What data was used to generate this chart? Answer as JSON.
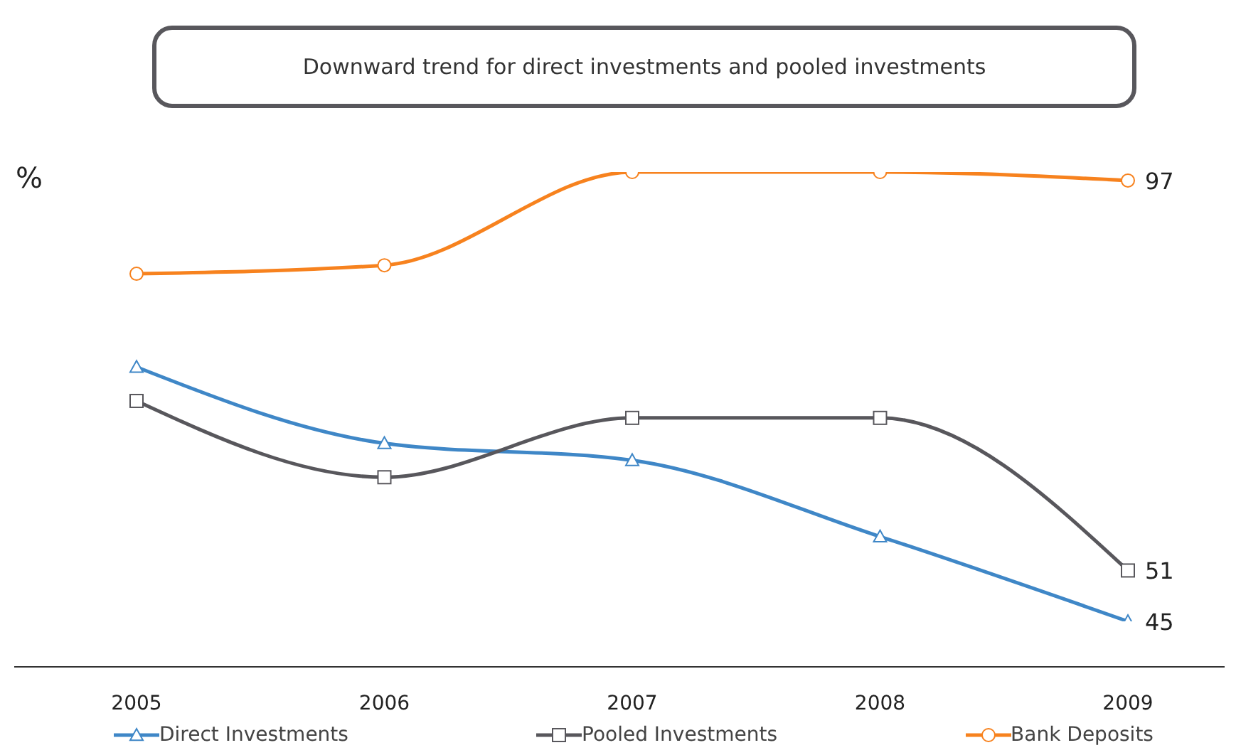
{
  "chart_data": {
    "type": "line",
    "title": "Downward trend for direct investments and pooled investments",
    "ylabel": "%",
    "categories": [
      "2005",
      "2006",
      "2007",
      "2008",
      "2009"
    ],
    "tick_labels": "x",
    "legend": "bottom",
    "grid": false,
    "series": [
      {
        "name": "Direct Investments",
        "color": "#3f87c7",
        "marker": "triangle",
        "values": [
          75,
          66,
          64,
          55,
          45
        ],
        "value_labels": [
          null,
          null,
          null,
          null,
          "45"
        ]
      },
      {
        "name": "Pooled Investments",
        "color": "#58575c",
        "marker": "square",
        "values": [
          71,
          62,
          69,
          69,
          51
        ],
        "value_labels": [
          null,
          null,
          null,
          null,
          "51"
        ]
      },
      {
        "name": "Bank Deposits",
        "color": "#f7821e",
        "marker": "circle",
        "values": [
          86,
          87,
          98,
          98,
          97
        ],
        "value_labels": [
          null,
          null,
          null,
          null,
          "97"
        ]
      }
    ]
  }
}
